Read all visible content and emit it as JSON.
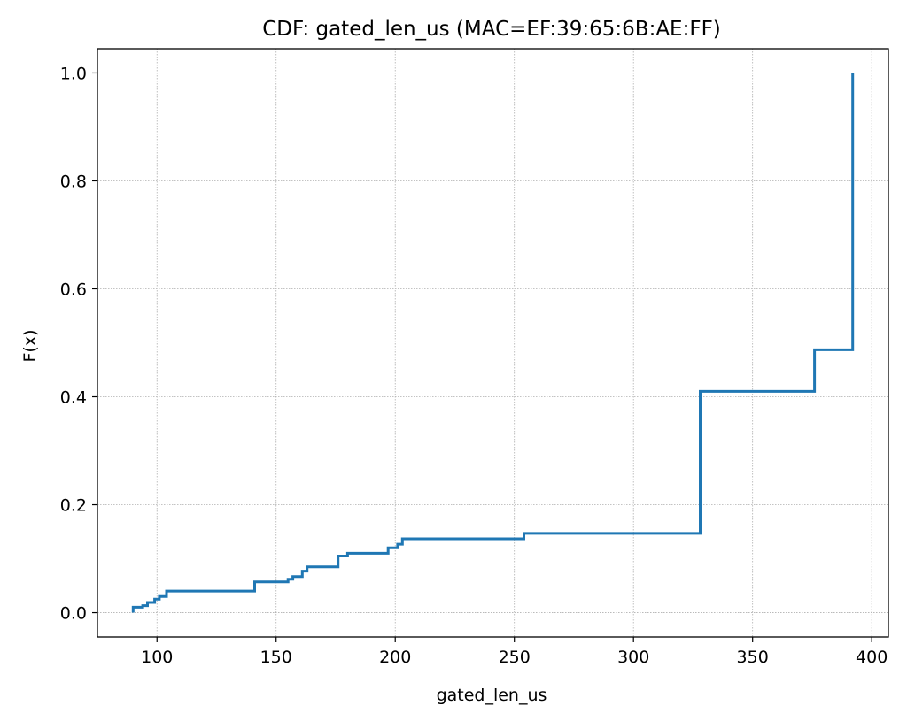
{
  "chart_data": {
    "type": "line",
    "title": "CDF: gated_len_us (MAC=EF:39:65:6B:AE:FF)",
    "xlabel": "gated_len_us",
    "ylabel": "F(x)",
    "xlim": [
      75,
      407
    ],
    "ylim": [
      -0.045,
      1.045
    ],
    "x_ticks": [
      100,
      150,
      200,
      250,
      300,
      350,
      400
    ],
    "y_ticks": [
      0.0,
      0.2,
      0.4,
      0.6,
      0.8,
      1.0
    ],
    "x_tick_labels": [
      "100",
      "150",
      "200",
      "250",
      "300",
      "350",
      "400"
    ],
    "y_tick_labels": [
      "0.0",
      "0.2",
      "0.4",
      "0.6",
      "0.8",
      "1.0"
    ],
    "grid": true,
    "line_color": "#1f77b4",
    "series": [
      {
        "x": [
          90,
          90,
          94,
          94,
          96,
          96,
          99,
          99,
          101,
          101,
          104,
          104,
          141,
          141,
          155,
          155,
          157,
          157,
          161,
          161,
          163,
          163,
          176,
          176,
          180,
          180,
          197,
          197,
          201,
          201,
          203,
          203,
          254,
          254,
          328,
          328,
          376,
          376,
          392,
          392
        ],
        "y": [
          0.0,
          0.01,
          0.01,
          0.013,
          0.013,
          0.019,
          0.019,
          0.025,
          0.025,
          0.03,
          0.03,
          0.04,
          0.04,
          0.057,
          0.057,
          0.062,
          0.062,
          0.067,
          0.067,
          0.077,
          0.077,
          0.085,
          0.085,
          0.105,
          0.105,
          0.11,
          0.11,
          0.12,
          0.12,
          0.127,
          0.127,
          0.137,
          0.137,
          0.147,
          0.147,
          0.41,
          0.41,
          0.487,
          0.487,
          1.0
        ]
      }
    ]
  }
}
